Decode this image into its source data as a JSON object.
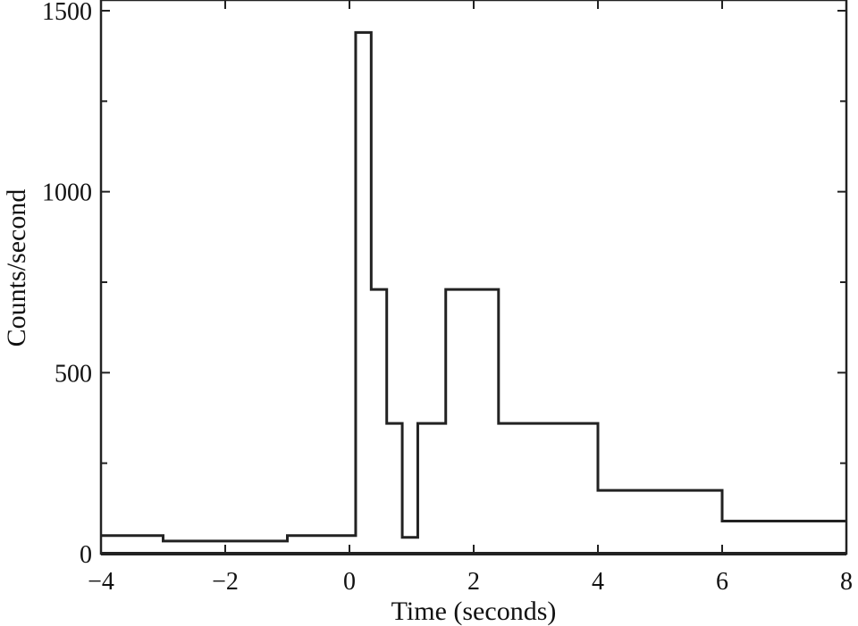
{
  "chart_data": {
    "type": "line",
    "style": "step histogram",
    "xlabel": "Time (seconds)",
    "ylabel": "Counts/second",
    "xlim": [
      -4,
      8
    ],
    "ylim": [
      0,
      1500
    ],
    "x_ticks": [
      -4,
      -2,
      0,
      2,
      4,
      6,
      8
    ],
    "x_tick_labels": [
      "−4",
      "−2",
      "0",
      "2",
      "4",
      "6",
      "8"
    ],
    "y_ticks": [
      0,
      500,
      1000,
      1500
    ],
    "y_tick_labels": [
      "0",
      "500",
      "1000",
      "1500"
    ],
    "grid": false,
    "series": [
      {
        "bins": [
          {
            "x0": -4.0,
            "x1": -3.0,
            "y": 50
          },
          {
            "x0": -3.0,
            "x1": -1.0,
            "y": 35
          },
          {
            "x0": -1.0,
            "x1": 0.1,
            "y": 50
          },
          {
            "x0": 0.1,
            "x1": 0.35,
            "y": 1440
          },
          {
            "x0": 0.35,
            "x1": 0.6,
            "y": 730
          },
          {
            "x0": 0.6,
            "x1": 0.85,
            "y": 360
          },
          {
            "x0": 0.85,
            "x1": 1.1,
            "y": 45
          },
          {
            "x0": 1.1,
            "x1": 1.55,
            "y": 360
          },
          {
            "x0": 1.55,
            "x1": 2.4,
            "y": 730
          },
          {
            "x0": 2.4,
            "x1": 4.0,
            "y": 360
          },
          {
            "x0": 4.0,
            "x1": 6.0,
            "y": 175
          },
          {
            "x0": 6.0,
            "x1": 8.0,
            "y": 90
          }
        ]
      }
    ]
  }
}
